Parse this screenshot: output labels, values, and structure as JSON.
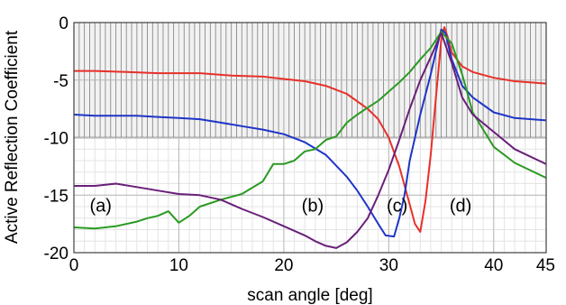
{
  "chart_data": {
    "type": "line",
    "xlabel": "scan angle [deg]",
    "ylabel": "Active Reflection Coefficient",
    "xlim": [
      0,
      45
    ],
    "ylim": [
      -20,
      0
    ],
    "xticks": [
      "0",
      "10",
      "20",
      "30",
      "40",
      "45"
    ],
    "yticks": [
      "0",
      "-5",
      "-10",
      "-15",
      "-20"
    ],
    "grid": true,
    "hatched_band": [
      -10,
      0
    ],
    "annotations": [
      {
        "text": "(a)",
        "x": 1.5,
        "y": -15.9
      },
      {
        "text": "(b)",
        "x": 21.7,
        "y": -15.9
      },
      {
        "text": "(c)",
        "x": 29.8,
        "y": -15.9
      },
      {
        "text": "(d)",
        "x": 35.8,
        "y": -15.9
      }
    ],
    "series": [
      {
        "color": "#e8302a",
        "x": [
          0,
          2,
          5,
          8,
          10,
          12,
          15,
          18,
          20,
          22,
          24,
          26,
          28,
          29,
          30,
          31,
          32,
          32.5,
          33,
          33.5,
          34,
          34.5,
          35,
          35.3,
          35.6,
          36,
          37,
          38,
          40,
          42,
          45
        ],
        "y": [
          -4.2,
          -4.2,
          -4.3,
          -4.4,
          -4.4,
          -4.4,
          -4.6,
          -4.7,
          -4.9,
          -5.1,
          -5.5,
          -6.2,
          -7.5,
          -8.4,
          -10.0,
          -12.5,
          -15.8,
          -17.5,
          -18.2,
          -15.5,
          -11.5,
          -6.5,
          -1.5,
          -0.4,
          -1.2,
          -2.6,
          -3.8,
          -4.3,
          -4.8,
          -5.1,
          -5.3
        ]
      },
      {
        "color": "#1f35c8",
        "x": [
          0,
          2,
          4,
          6,
          8,
          10,
          12,
          14,
          16,
          18,
          20,
          22,
          24,
          26,
          27,
          28,
          29,
          29.7,
          30.5,
          31,
          31.5,
          32,
          33,
          34,
          34.5,
          35,
          35.4,
          36,
          37,
          38,
          40,
          42,
          45
        ],
        "y": [
          -8.0,
          -8.1,
          -8.1,
          -8.1,
          -8.2,
          -8.3,
          -8.4,
          -8.7,
          -9.0,
          -9.3,
          -9.7,
          -10.4,
          -11.5,
          -13.4,
          -14.6,
          -16.0,
          -17.5,
          -18.5,
          -18.6,
          -17.0,
          -15.0,
          -12.0,
          -8.0,
          -4.5,
          -2.5,
          -0.6,
          -0.9,
          -3.2,
          -5.5,
          -6.5,
          -7.8,
          -8.3,
          -8.5
        ]
      },
      {
        "color": "#2a9a22",
        "x": [
          0,
          2,
          4,
          6,
          7,
          8,
          9,
          10,
          11,
          12,
          14,
          16,
          18,
          19,
          20,
          21,
          22,
          23,
          24,
          25,
          26,
          27,
          28,
          29,
          30,
          31,
          32,
          33,
          34,
          35,
          36,
          37,
          38,
          39,
          40,
          42,
          45
        ],
        "y": [
          -17.8,
          -17.9,
          -17.7,
          -17.3,
          -17.0,
          -16.8,
          -16.4,
          -17.4,
          -16.8,
          -16.0,
          -15.4,
          -14.9,
          -13.8,
          -12.3,
          -12.3,
          -12.0,
          -11.2,
          -11.0,
          -10.2,
          -9.9,
          -8.7,
          -8.0,
          -7.4,
          -6.8,
          -6.0,
          -5.2,
          -4.3,
          -3.2,
          -2.2,
          -0.8,
          -1.8,
          -4.5,
          -7.8,
          -9.3,
          -10.8,
          -12.2,
          -13.5
        ]
      },
      {
        "color": "#6a1f7a",
        "x": [
          0,
          2,
          4,
          6,
          8,
          10,
          12,
          14,
          16,
          18,
          20,
          22,
          23,
          24,
          25,
          26,
          27,
          28,
          29,
          30,
          31,
          32,
          33,
          34,
          35,
          36,
          37,
          38,
          40,
          42,
          45
        ],
        "y": [
          -14.2,
          -14.2,
          -14.0,
          -14.3,
          -14.6,
          -14.9,
          -15.0,
          -15.4,
          -16.2,
          -16.9,
          -17.7,
          -18.5,
          -19.0,
          -19.4,
          -19.6,
          -19.1,
          -18.2,
          -17.0,
          -15.0,
          -12.8,
          -10.2,
          -7.5,
          -5.0,
          -3.0,
          -0.9,
          -3.5,
          -6.5,
          -8.0,
          -9.5,
          -11.0,
          -12.3
        ]
      }
    ]
  }
}
